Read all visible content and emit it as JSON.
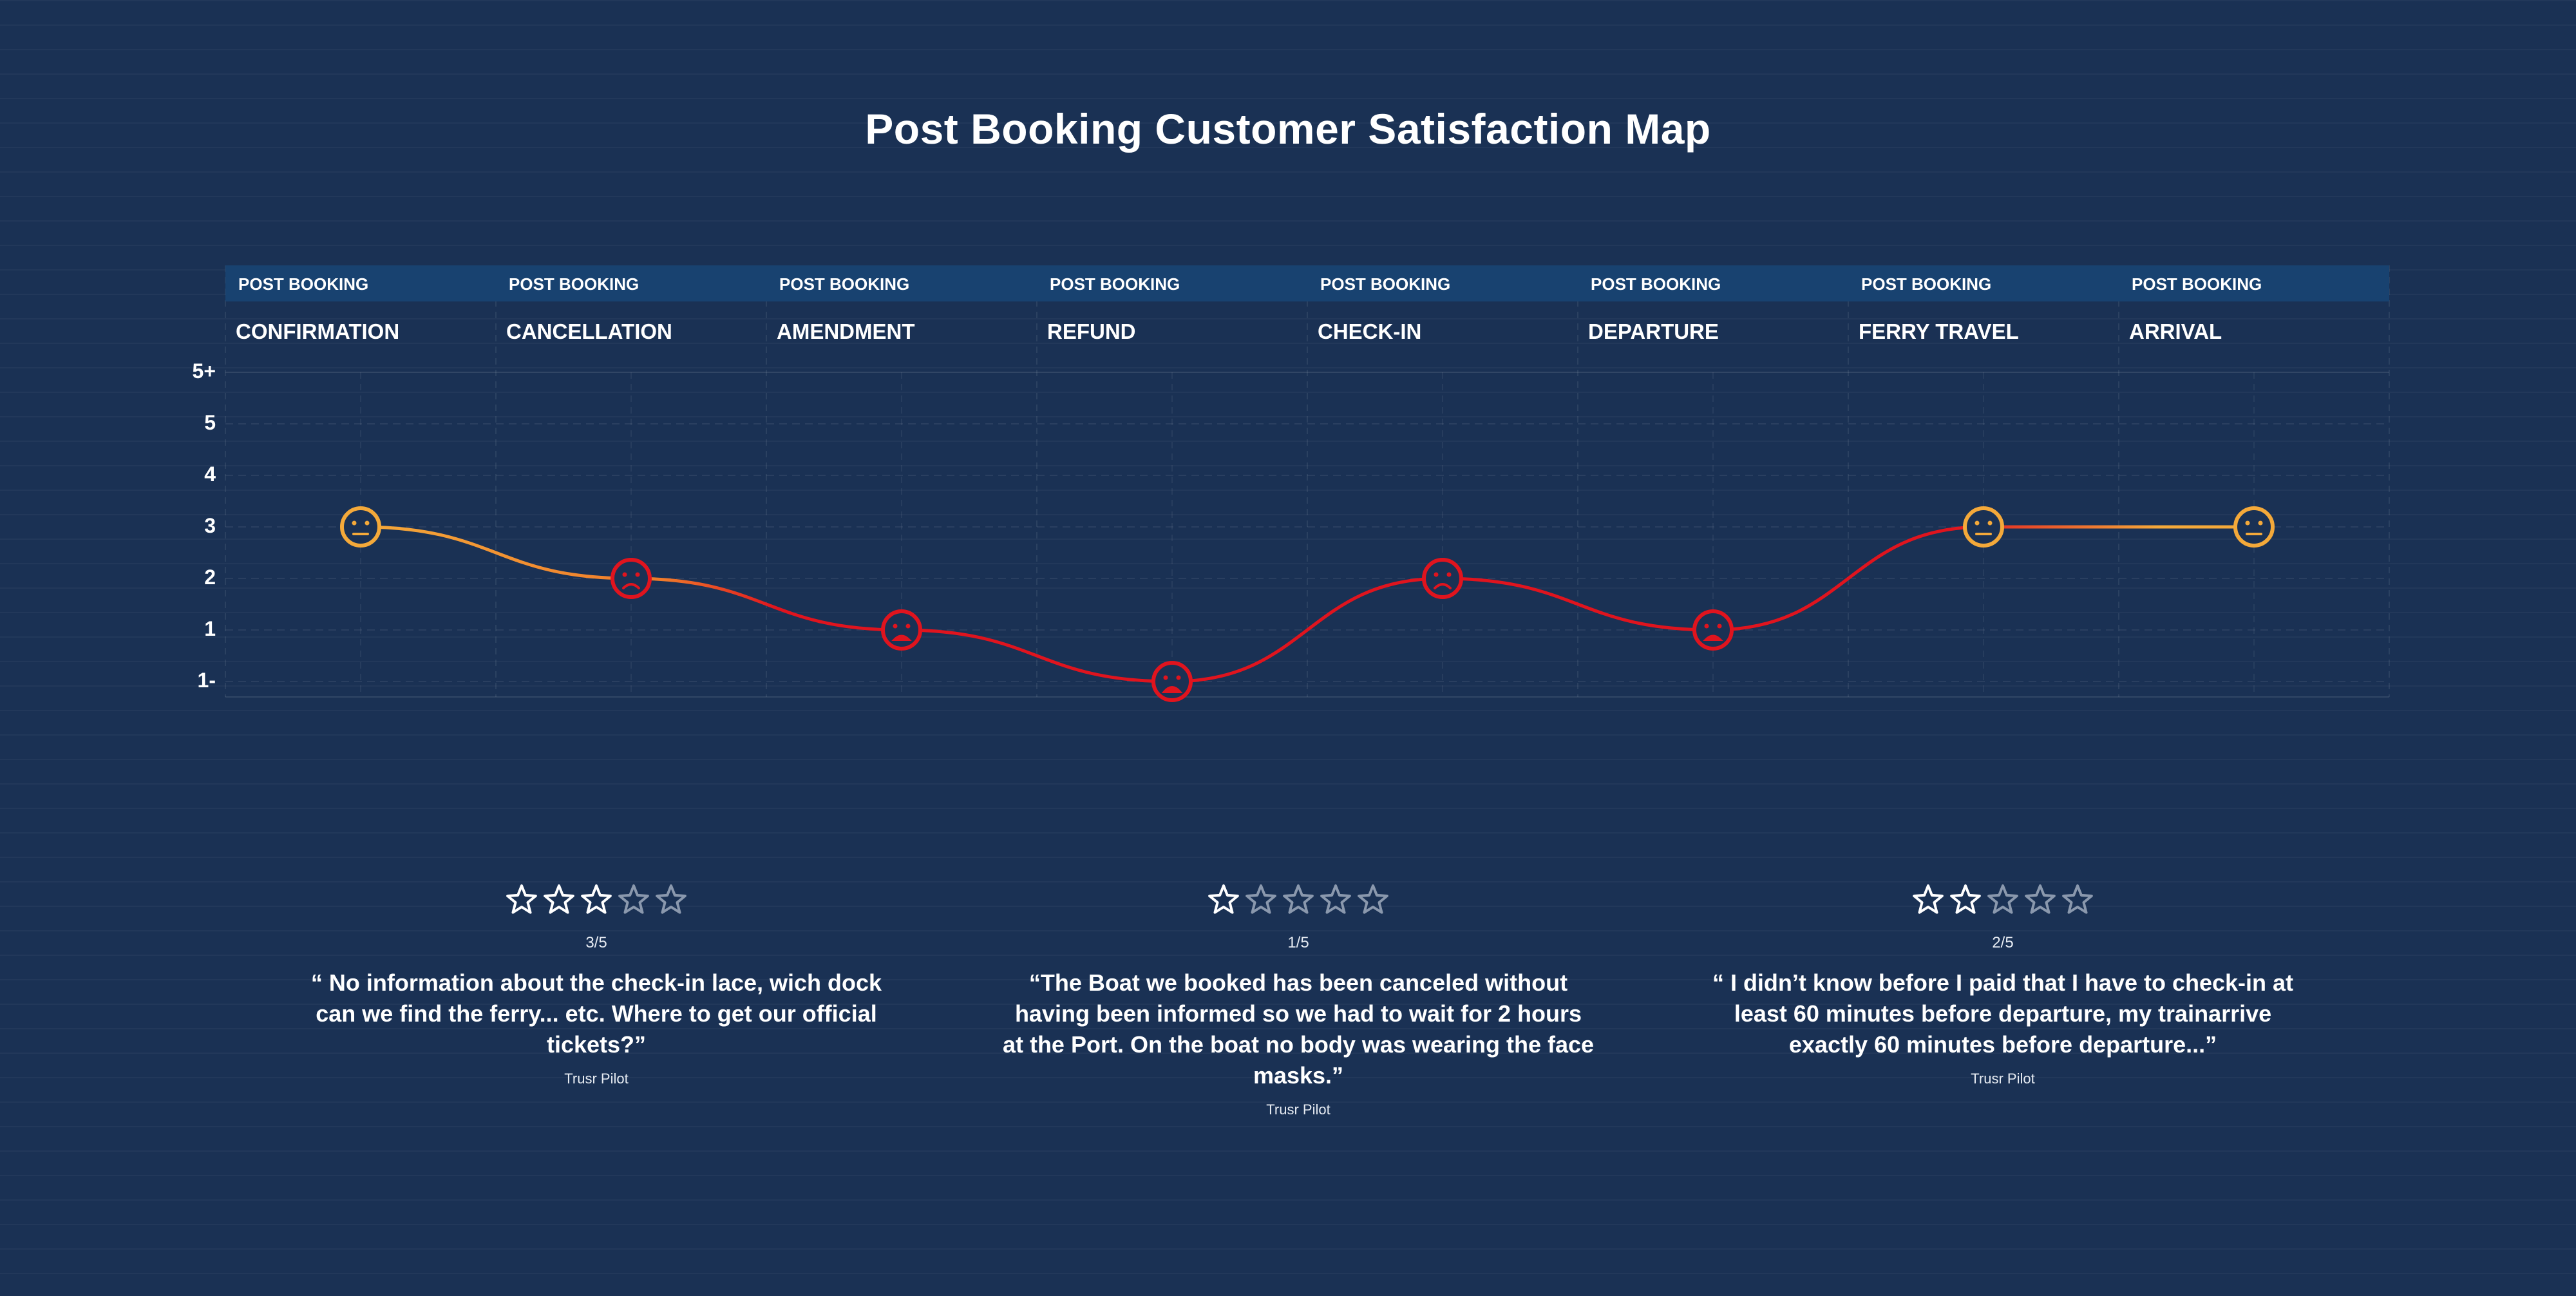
{
  "page": {
    "title": "Post Booking Customer Satisfaction Map"
  },
  "colors": {
    "background": "#1a3154",
    "header_band": "#184270",
    "neutral": "#f4a93a",
    "negative": "#e0141e",
    "star_filled": "#ffffff",
    "star_empty": "#8a98ad"
  },
  "chart_data": {
    "type": "line",
    "categories": [
      "CONFIRMATION",
      "CANCELLATION",
      "AMENDMENT",
      "REFUND",
      "CHECK-IN",
      "DEPARTURE",
      "FERRY TRAVEL",
      "ARRIVAL"
    ],
    "category_kicker": "POST BOOKING",
    "y_ticks": [
      "5+",
      "5",
      "4",
      "3",
      "2",
      "1",
      "1-"
    ],
    "series": [
      {
        "values": [
          3,
          2,
          1,
          0,
          2,
          1,
          3,
          3
        ],
        "markers": [
          "neutral-face-icon",
          "sad-face-icon",
          "upset-face-icon",
          "very-upset-face-icon",
          "sad-face-icon",
          "upset-face-icon",
          "neutral-face-icon",
          "neutral-face-icon"
        ]
      }
    ],
    "ylim": [
      0,
      6
    ],
    "grid": true
  },
  "reviews": [
    {
      "rating": 3,
      "out_of": 5,
      "score_label": "3/5",
      "quote": "“ No information about the check-in lace, wich dock can we find the ferry... etc. Where to get our official tickets?”",
      "source": "Trusr Pilot"
    },
    {
      "rating": 1,
      "out_of": 5,
      "score_label": "1/5",
      "quote": "“The Boat we booked has been canceled without having been informed so we had to wait for 2 hours at the Port. On the boat no body was wearing the face masks.”",
      "source": "Trusr Pilot"
    },
    {
      "rating": 2,
      "out_of": 5,
      "score_label": "2/5",
      "quote": "“ I didn’t know before I paid that I have to check-in at least 60 minutes before departure, my trainarrive exactly 60 minutes before departure...”",
      "source": "Trusr Pilot"
    }
  ]
}
